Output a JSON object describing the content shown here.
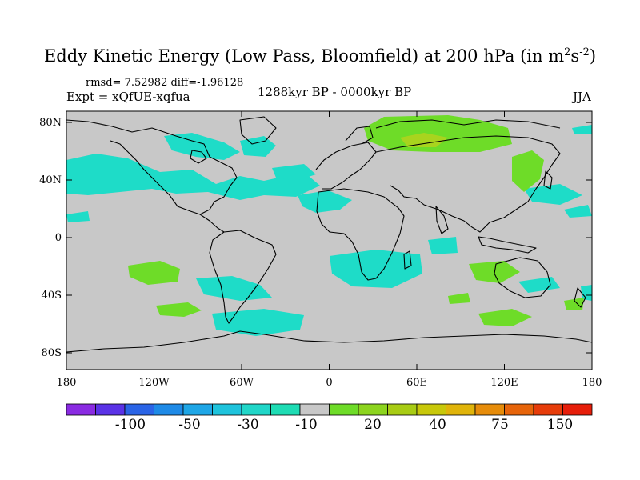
{
  "title": {
    "main": "Eddy Kinetic Energy (Low Pass, Bloomfield) at 200 hPa (in m",
    "sup1": "2",
    "mid": "s",
    "sup2": "-2",
    "end": ")"
  },
  "stats": {
    "rmsd_label": "rmsd=",
    "rmsd": "7.52982",
    "diff_label": "diff=",
    "diff": "-1.96128"
  },
  "experiment": "Expt = xQfUE-xqfua",
  "period": "1288kyr BP - 0000kyr BP",
  "season": "JJA",
  "axes": {
    "lon_ticks": [
      "180",
      "120W",
      "60W",
      "0",
      "60E",
      "120E",
      "180"
    ],
    "lat_ticks": [
      "80N",
      "40N",
      "0",
      "40S",
      "80S"
    ]
  },
  "colorbar": {
    "colors": [
      "#8a2be2",
      "#5a32e6",
      "#2a64e6",
      "#1e8ae6",
      "#1ea6e6",
      "#1ec3dc",
      "#20d6c8",
      "#1edcb4",
      "#c8c8c8",
      "#6edc28",
      "#8cd41e",
      "#a8cc14",
      "#c8c80a",
      "#e0b40a",
      "#e68c0a",
      "#e6640a",
      "#e63c0a",
      "#e61e0a"
    ],
    "labels": [
      "-100",
      "-50",
      "-30",
      "-10",
      "20",
      "40",
      "75",
      "150"
    ]
  },
  "colors": {
    "background": "#c8c8c8",
    "cyan": "#1edcc8",
    "green": "#6edc28",
    "green_dark": "#a8d41e",
    "coast": "#000000"
  }
}
